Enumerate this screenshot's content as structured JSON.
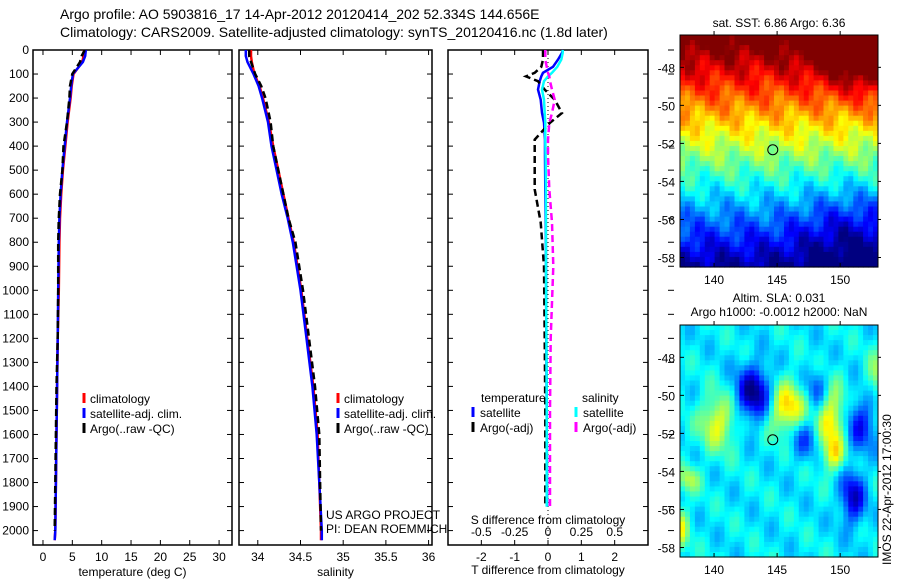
{
  "header": {
    "line1": "Argo profile: AO 5903816_17 14-Apr-2012 20120414_202 52.334S 144.656E",
    "line2": "Climatology: CARS2009. Satellite-adjusted climatology: synTS_20120416.nc (1.8d later)"
  },
  "colors": {
    "climatology": "#ff0000",
    "satellite": "#0000ff",
    "argo": "#000000",
    "s_satellite": "#00ffff",
    "s_argo": "#ff00ff"
  },
  "chart_data": [
    {
      "type": "line",
      "name": "temperature-profile",
      "xlabel": "temperature (deg C)",
      "ylabel": "depth",
      "xlim": [
        -1.7,
        32.2
      ],
      "ylim": [
        2060,
        0
      ],
      "xticks": [
        0,
        5,
        10,
        15,
        20,
        25,
        30
      ],
      "yticks": [
        0,
        100,
        200,
        300,
        400,
        500,
        600,
        700,
        800,
        900,
        1000,
        1100,
        1200,
        1300,
        1400,
        1500,
        1600,
        1700,
        1800,
        1900,
        2000
      ],
      "depth": [
        0,
        25,
        50,
        100,
        150,
        200,
        300,
        400,
        500,
        600,
        700,
        800,
        1000,
        1200,
        1400,
        1600,
        1800,
        2000,
        2040
      ],
      "series": [
        {
          "name": "climatology",
          "values": [
            7.0,
            6.9,
            6.7,
            5.2,
            4.9,
            4.7,
            4.2,
            3.8,
            3.4,
            3.1,
            2.9,
            2.8,
            2.7,
            2.5,
            2.4,
            2.3,
            2.2,
            2.1,
            2.0
          ]
        },
        {
          "name": "satellite-adj. clim.",
          "values": [
            7.3,
            7.2,
            6.8,
            5.1,
            4.8,
            4.6,
            4.1,
            3.7,
            3.3,
            3.0,
            2.8,
            2.7,
            2.6,
            2.5,
            2.4,
            2.3,
            2.2,
            2.1,
            2.0
          ]
        },
        {
          "name": "Argo(..raw -QC)",
          "values": [
            7.1,
            6.6,
            6.3,
            5.0,
            4.6,
            4.5,
            4.1,
            3.5,
            3.3,
            2.9,
            2.7,
            2.6,
            2.6,
            2.5,
            2.3,
            2.2,
            2.1,
            2.0,
            null
          ]
        }
      ],
      "legend": [
        "climatology",
        "satellite-adj. clim.",
        "Argo(..raw -QC)"
      ]
    },
    {
      "type": "line",
      "name": "salinity-profile",
      "xlabel": "salinity",
      "xlim": [
        33.78,
        36.04
      ],
      "ylim": [
        2060,
        0
      ],
      "xticks": [
        34,
        34.5,
        35,
        35.5,
        36
      ],
      "xticklabels": [
        "34",
        "34.5",
        "35",
        "35.5",
        "36"
      ],
      "depth": [
        0,
        25,
        50,
        100,
        150,
        200,
        300,
        400,
        500,
        600,
        700,
        800,
        1000,
        1200,
        1400,
        1600,
        1800,
        2000,
        2040
      ],
      "series": [
        {
          "name": "climatology",
          "values": [
            33.92,
            33.92,
            33.93,
            33.96,
            34.02,
            34.06,
            34.13,
            34.18,
            34.24,
            34.3,
            34.36,
            34.42,
            34.51,
            34.58,
            34.65,
            34.7,
            34.72,
            34.74,
            34.74
          ]
        },
        {
          "name": "satellite-adj. clim.",
          "values": [
            33.86,
            33.86,
            33.88,
            33.95,
            34.01,
            34.05,
            34.12,
            34.16,
            34.22,
            34.28,
            34.35,
            34.41,
            34.5,
            34.57,
            34.64,
            34.69,
            34.72,
            34.75,
            34.75
          ]
        },
        {
          "name": "Argo(..raw -QC)",
          "values": [
            33.9,
            33.9,
            33.92,
            33.97,
            34.04,
            34.09,
            34.15,
            34.18,
            34.24,
            34.3,
            34.36,
            34.44,
            34.53,
            34.6,
            34.67,
            34.72,
            34.73,
            34.74,
            null
          ]
        }
      ],
      "legend": [
        "climatology",
        "satellite-adj. clim.",
        "Argo(..raw -QC)"
      ],
      "annotation": [
        "US ARGO PROJECT",
        "PI: DEAN ROEMMICH"
      ]
    },
    {
      "type": "line",
      "name": "difference-profile",
      "xlabel": "T difference from climatology",
      "x2label": "S difference from climatology",
      "xlim": [
        -3,
        3
      ],
      "x2lim": [
        -0.75,
        0.75
      ],
      "xticks": [
        -2,
        -1,
        0,
        1,
        2
      ],
      "x2ticks": [
        -0.5,
        -0.25,
        0,
        0.25,
        0.5
      ],
      "x2ticklabels": [
        "-0.5",
        "-0.25",
        "0",
        "0.25",
        "0.5"
      ],
      "depth": [
        0,
        12,
        40,
        70,
        95,
        110,
        130,
        165,
        207,
        262,
        303,
        373,
        440,
        580,
        718,
        900,
        1200,
        1500,
        1800,
        1900
      ],
      "series": [
        {
          "name": "temperature satellite",
          "values": [
            0.45,
            0.42,
            0.3,
            0.15,
            -0.15,
            -0.2,
            -0.25,
            -0.3,
            -0.22,
            -0.18,
            -0.12,
            -0.09,
            -0.09,
            -0.08,
            -0.07,
            -0.06,
            -0.05,
            -0.04,
            -0.03,
            -0.03
          ]
        },
        {
          "name": "temperature Argo(-adj)",
          "values": [
            -0.15,
            -0.15,
            -0.15,
            -0.2,
            -0.4,
            -0.66,
            -0.3,
            -0.1,
            0.2,
            0.42,
            0.06,
            -0.4,
            -0.4,
            -0.4,
            -0.22,
            -0.12,
            -0.1,
            -0.08,
            -0.08,
            -0.08
          ]
        },
        {
          "name": "salinity satellite",
          "values": [
            0.11,
            0.11,
            0.1,
            0.07,
            0.03,
            0.0,
            -0.03,
            -0.045,
            -0.03,
            -0.025,
            -0.02,
            -0.02,
            -0.018,
            -0.016,
            -0.015,
            -0.015,
            -0.012,
            -0.01,
            -0.01,
            -0.01
          ]
        },
        {
          "name": "salinity Argo(-adj)",
          "values": [
            -0.02,
            -0.02,
            -0.02,
            -0.01,
            0.0,
            0.01,
            0.015,
            0.03,
            0.05,
            0.03,
            0.01,
            0.0,
            0.0,
            0.01,
            0.03,
            0.04,
            0.02,
            0.015,
            0.015,
            0.015
          ]
        }
      ],
      "legend": {
        "temperature": {
          "title": "temperature",
          "items": [
            "satellite",
            "Argo(-adj)"
          ]
        },
        "salinity": {
          "title": "salinity",
          "items": [
            "satellite",
            "Argo(-adj)"
          ]
        }
      }
    },
    {
      "type": "heatmap",
      "name": "sst-map",
      "title": "sat. SST: 6.86 Argo: 6.36",
      "xlim": [
        137.3,
        153
      ],
      "ylim": [
        -58.5,
        -46.3
      ],
      "xticks": [
        140,
        145,
        150
      ],
      "yticks": [
        -48,
        -50,
        -52,
        -54,
        -56,
        -58
      ],
      "marker": {
        "lon": 144.656,
        "lat": -52.334
      }
    },
    {
      "type": "heatmap",
      "name": "sla-map",
      "title": "Altim. SLA: 0.031",
      "subtitle": "Argo h1000: -0.0012 h2000: NaN",
      "xlim": [
        137.3,
        153
      ],
      "ylim": [
        -58.5,
        -46.3
      ],
      "xticks": [
        140,
        145,
        150
      ],
      "yticks": [
        -48,
        -50,
        -52,
        -54,
        -56,
        -58
      ],
      "marker": {
        "lon": 144.656,
        "lat": -52.334
      },
      "side_label": "IMOS 22-Apr-2012 17:00:30"
    }
  ]
}
